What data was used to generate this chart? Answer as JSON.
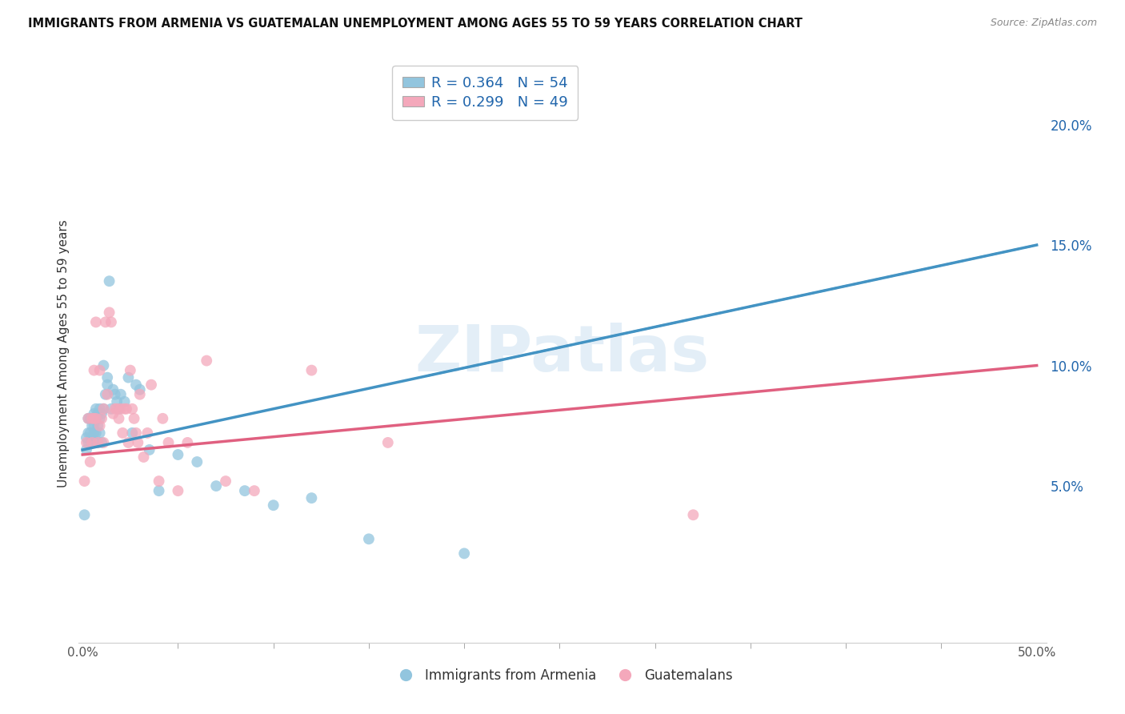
{
  "title": "IMMIGRANTS FROM ARMENIA VS GUATEMALAN UNEMPLOYMENT AMONG AGES 55 TO 59 YEARS CORRELATION CHART",
  "source": "Source: ZipAtlas.com",
  "ylabel": "Unemployment Among Ages 55 to 59 years",
  "ylabel_right_ticks": [
    "5.0%",
    "10.0%",
    "15.0%",
    "20.0%"
  ],
  "ylabel_right_vals": [
    0.05,
    0.1,
    0.15,
    0.2
  ],
  "xlim": [
    -0.002,
    0.505
  ],
  "ylim": [
    -0.015,
    0.225
  ],
  "legend_label1": "R = 0.364   N = 54",
  "legend_label2": "R = 0.299   N = 49",
  "legend_bottom1": "Immigrants from Armenia",
  "legend_bottom2": "Guatemalans",
  "color_blue": "#92c5de",
  "color_pink": "#f4a8bb",
  "color_blue_line": "#4393c3",
  "color_pink_line": "#e06080",
  "color_blue_dark": "#2166ac",
  "watermark": "ZIPatlas",
  "blue_scatter_x": [
    0.001,
    0.002,
    0.002,
    0.003,
    0.003,
    0.003,
    0.004,
    0.004,
    0.005,
    0.005,
    0.005,
    0.006,
    0.006,
    0.006,
    0.006,
    0.007,
    0.007,
    0.007,
    0.007,
    0.008,
    0.008,
    0.008,
    0.009,
    0.009,
    0.009,
    0.01,
    0.01,
    0.011,
    0.011,
    0.012,
    0.013,
    0.013,
    0.014,
    0.015,
    0.016,
    0.017,
    0.018,
    0.019,
    0.02,
    0.022,
    0.024,
    0.026,
    0.028,
    0.03,
    0.035,
    0.04,
    0.05,
    0.06,
    0.07,
    0.085,
    0.1,
    0.12,
    0.15,
    0.2
  ],
  "blue_scatter_y": [
    0.038,
    0.065,
    0.07,
    0.068,
    0.072,
    0.078,
    0.072,
    0.078,
    0.07,
    0.075,
    0.068,
    0.078,
    0.072,
    0.08,
    0.075,
    0.078,
    0.082,
    0.072,
    0.078,
    0.08,
    0.075,
    0.068,
    0.082,
    0.078,
    0.072,
    0.068,
    0.08,
    0.082,
    0.1,
    0.088,
    0.092,
    0.095,
    0.135,
    0.082,
    0.09,
    0.088,
    0.085,
    0.082,
    0.088,
    0.085,
    0.095,
    0.072,
    0.092,
    0.09,
    0.065,
    0.048,
    0.063,
    0.06,
    0.05,
    0.048,
    0.042,
    0.045,
    0.028,
    0.022
  ],
  "pink_scatter_x": [
    0.001,
    0.002,
    0.003,
    0.004,
    0.005,
    0.005,
    0.006,
    0.006,
    0.007,
    0.007,
    0.008,
    0.009,
    0.009,
    0.01,
    0.011,
    0.011,
    0.012,
    0.013,
    0.014,
    0.015,
    0.016,
    0.017,
    0.018,
    0.019,
    0.02,
    0.021,
    0.022,
    0.023,
    0.024,
    0.025,
    0.026,
    0.027,
    0.028,
    0.029,
    0.03,
    0.032,
    0.034,
    0.036,
    0.04,
    0.042,
    0.045,
    0.05,
    0.055,
    0.065,
    0.075,
    0.09,
    0.12,
    0.16,
    0.32
  ],
  "pink_scatter_y": [
    0.052,
    0.068,
    0.078,
    0.06,
    0.068,
    0.078,
    0.078,
    0.098,
    0.078,
    0.118,
    0.068,
    0.075,
    0.098,
    0.078,
    0.068,
    0.082,
    0.118,
    0.088,
    0.122,
    0.118,
    0.08,
    0.082,
    0.082,
    0.078,
    0.082,
    0.072,
    0.082,
    0.082,
    0.068,
    0.098,
    0.082,
    0.078,
    0.072,
    0.068,
    0.088,
    0.062,
    0.072,
    0.092,
    0.052,
    0.078,
    0.068,
    0.048,
    0.068,
    0.102,
    0.052,
    0.048,
    0.098,
    0.068,
    0.038
  ]
}
